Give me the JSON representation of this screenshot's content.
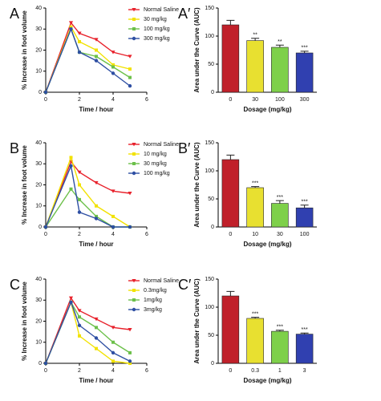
{
  "chart_data": [
    {
      "type": "line",
      "panel_label": "A",
      "ylabel": "% Increase in foot volume",
      "xlabel": "Time / hour",
      "x": [
        0,
        1.5,
        2,
        3,
        4,
        5
      ],
      "xlim": [
        0,
        6
      ],
      "xticks": [
        0,
        2,
        4,
        6
      ],
      "ylim": [
        0,
        40
      ],
      "yticks": [
        0,
        10,
        20,
        30,
        40
      ],
      "series": [
        {
          "name": "Normal Saline",
          "color": "#e8212b",
          "marker": "triangle",
          "values": [
            0,
            33,
            28,
            25,
            19,
            17
          ]
        },
        {
          "name": "30 mg/kg",
          "color": "#f2e200",
          "marker": "square",
          "values": [
            0,
            31,
            24,
            20,
            13,
            11
          ]
        },
        {
          "name": "100 mg/kg",
          "color": "#6cc04a",
          "marker": "square",
          "values": [
            0,
            30,
            19,
            17,
            12,
            7
          ]
        },
        {
          "name": "300 mg/kg",
          "color": "#2e4fa3",
          "marker": "circle",
          "values": [
            0,
            30,
            19,
            15,
            9,
            3
          ]
        }
      ]
    },
    {
      "type": "bar",
      "panel_label": "A′",
      "ylabel": "Area under the Curve (AUC)",
      "xlabel": "Dosage (mg/kg)",
      "categories": [
        "0",
        "30",
        "100",
        "300"
      ],
      "values": [
        120,
        92,
        80,
        70
      ],
      "errors": [
        8,
        4,
        4,
        3
      ],
      "significance": [
        null,
        "**",
        "**",
        "***"
      ],
      "colors": [
        "#c0202a",
        "#e8e030",
        "#7ed04a",
        "#3040b0"
      ],
      "ylim": [
        0,
        150
      ],
      "yticks": [
        0,
        50,
        100,
        150
      ]
    },
    {
      "type": "line",
      "panel_label": "B",
      "ylabel": "% Increase in foot volume",
      "xlabel": "Time / hour",
      "x": [
        0,
        1.5,
        2,
        3,
        4,
        5
      ],
      "xlim": [
        0,
        6
      ],
      "xticks": [
        0,
        2,
        4,
        6
      ],
      "ylim": [
        0,
        40
      ],
      "yticks": [
        0,
        10,
        20,
        30,
        40
      ],
      "series": [
        {
          "name": "Normal Saline",
          "color": "#e8212b",
          "marker": "triangle",
          "values": [
            0,
            31,
            26,
            21,
            17,
            16
          ]
        },
        {
          "name": "10 mg/kg",
          "color": "#f2e200",
          "marker": "square",
          "values": [
            0,
            33,
            20,
            10,
            5,
            0
          ]
        },
        {
          "name": "30 mg/kg",
          "color": "#6cc04a",
          "marker": "square",
          "values": [
            0,
            18,
            13,
            5,
            0,
            0
          ]
        },
        {
          "name": "100 mg/kg",
          "color": "#2e4fa3",
          "marker": "circle",
          "values": [
            0,
            29,
            7,
            4,
            0,
            0
          ]
        }
      ]
    },
    {
      "type": "bar",
      "panel_label": "B′",
      "ylabel": "Area under the Curve (AUC)",
      "xlabel": "Dosage (mg/kg)",
      "categories": [
        "0",
        "10",
        "30",
        "100"
      ],
      "values": [
        120,
        70,
        42,
        34
      ],
      "errors": [
        8,
        2,
        5,
        5
      ],
      "significance": [
        null,
        "***",
        "***",
        "***"
      ],
      "colors": [
        "#c0202a",
        "#e8e030",
        "#7ed04a",
        "#3040b0"
      ],
      "ylim": [
        0,
        150
      ],
      "yticks": [
        0,
        50,
        100,
        150
      ]
    },
    {
      "type": "line",
      "panel_label": "C",
      "ylabel": "% Increase in foot volume",
      "xlabel": "Time / hour",
      "x": [
        0,
        1.5,
        2,
        3,
        4,
        5
      ],
      "xlim": [
        0,
        6
      ],
      "xticks": [
        0,
        2,
        4,
        6
      ],
      "ylim": [
        0,
        40
      ],
      "yticks": [
        0,
        10,
        20,
        30,
        40
      ],
      "series": [
        {
          "name": "Normal Saline",
          "color": "#e8212b",
          "marker": "triangle",
          "values": [
            0,
            31,
            25,
            21,
            17,
            16
          ]
        },
        {
          "name": "0.3mg/kg",
          "color": "#f2e200",
          "marker": "square",
          "values": [
            0,
            29,
            13,
            7,
            1,
            0
          ]
        },
        {
          "name": "1mg/kg",
          "color": "#6cc04a",
          "marker": "square",
          "values": [
            0,
            29,
            22,
            17,
            10,
            5
          ]
        },
        {
          "name": "3mg/kg",
          "color": "#2e4fa3",
          "marker": "circle",
          "values": [
            0,
            29,
            18,
            12,
            5,
            1
          ]
        }
      ]
    },
    {
      "type": "bar",
      "panel_label": "C′",
      "ylabel": "Area under the Curve (AUC)",
      "xlabel": "Dosage (mg/kg)",
      "categories": [
        "0",
        "0.3",
        "1",
        "3"
      ],
      "values": [
        120,
        80,
        57,
        52
      ],
      "errors": [
        8,
        2,
        2,
        2
      ],
      "significance": [
        null,
        "***",
        "***",
        "***"
      ],
      "colors": [
        "#c0202a",
        "#e8e030",
        "#7ed04a",
        "#3040b0"
      ],
      "ylim": [
        0,
        150
      ],
      "yticks": [
        0,
        50,
        100,
        150
      ]
    }
  ]
}
